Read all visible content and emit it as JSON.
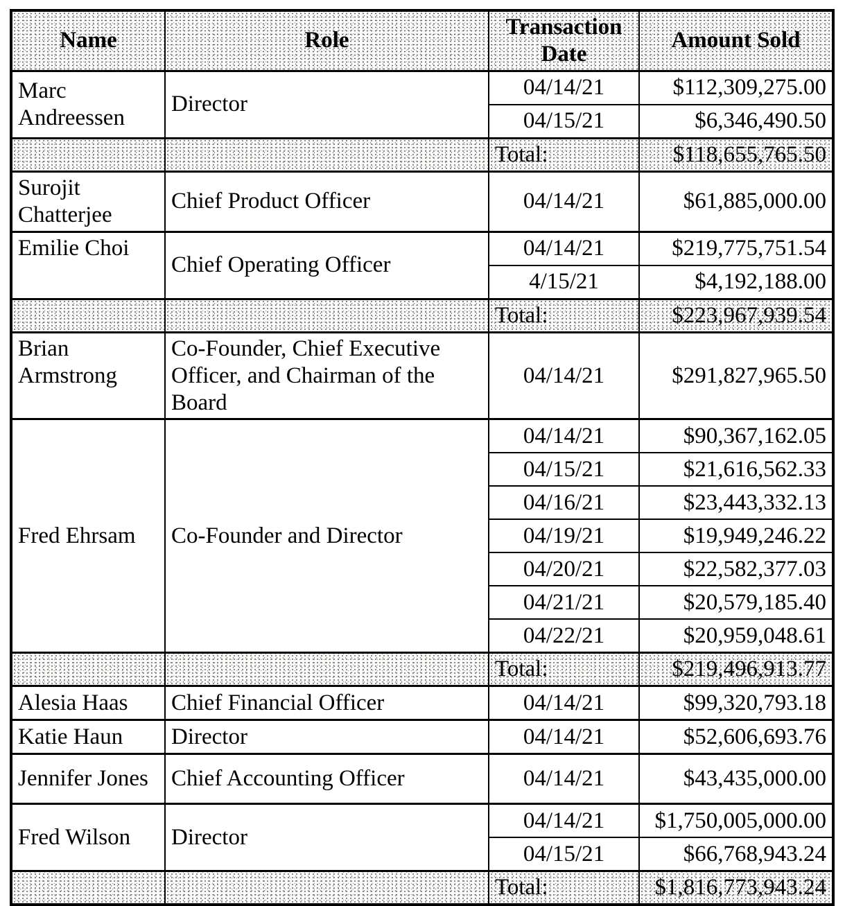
{
  "table": {
    "headers": [
      "Name",
      "Role",
      "Transaction Date",
      "Amount Sold"
    ],
    "total_label": "Total:",
    "groups": [
      {
        "name": "Marc Andreessen",
        "role": "Director",
        "transactions": [
          {
            "date": "04/14/21",
            "amount": "$112,309,275.00"
          },
          {
            "date": "04/15/21",
            "amount": "$6,346,490.50"
          }
        ],
        "total": "$118,655,765.50"
      },
      {
        "name": "Surojit Chatterjee",
        "role": "Chief Product Officer",
        "transactions": [
          {
            "date": "04/14/21",
            "amount": "$61,885,000.00"
          }
        ],
        "total": null
      },
      {
        "name": "Emilie Choi",
        "role": "Chief Operating Officer",
        "transactions": [
          {
            "date": "04/14/21",
            "amount": "$219,775,751.54"
          },
          {
            "date": "4/15/21",
            "amount": "$4,192,188.00"
          }
        ],
        "total": "$223,967,939.54"
      },
      {
        "name": "Brian Armstrong",
        "role": "Co-Founder, Chief Executive Officer, and Chairman of the Board",
        "transactions": [
          {
            "date": "04/14/21",
            "amount": "$291,827,965.50"
          }
        ],
        "total": null
      },
      {
        "name": "Fred Ehrsam",
        "role": "Co-Founder and Director",
        "transactions": [
          {
            "date": "04/14/21",
            "amount": "$90,367,162.05"
          },
          {
            "date": "04/15/21",
            "amount": "$21,616,562.33"
          },
          {
            "date": "04/16/21",
            "amount": "$23,443,332.13"
          },
          {
            "date": "04/19/21",
            "amount": "$19,949,246.22"
          },
          {
            "date": "04/20/21",
            "amount": "$22,582,377.03"
          },
          {
            "date": "04/21/21",
            "amount": "$20,579,185.40"
          },
          {
            "date": "04/22/21",
            "amount": "$20,959,048.61"
          }
        ],
        "total": "$219,496,913.77"
      },
      {
        "name": "Alesia Haas",
        "role": "Chief Financial Officer",
        "transactions": [
          {
            "date": "04/14/21",
            "amount": "$99,320,793.18"
          }
        ],
        "total": null
      },
      {
        "name": "Katie Haun",
        "role": "Director",
        "transactions": [
          {
            "date": "04/14/21",
            "amount": "$52,606,693.76"
          }
        ],
        "total": null
      },
      {
        "name": "Jennifer Jones",
        "role": "Chief Accounting Officer",
        "transactions": [
          {
            "date": "04/14/21",
            "amount": "$43,435,000.00"
          }
        ],
        "total": null
      },
      {
        "name": "Fred Wilson",
        "role": "Director",
        "transactions": [
          {
            "date": "04/14/21",
            "amount": "$1,750,005,000.00"
          },
          {
            "date": "04/15/21",
            "amount": "$66,768,943.24"
          }
        ],
        "total": "$1,816,773,943.24"
      }
    ]
  }
}
